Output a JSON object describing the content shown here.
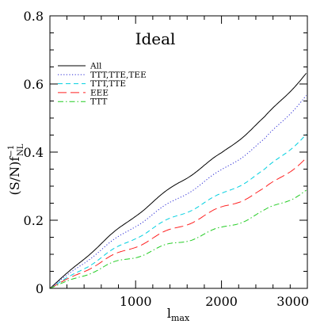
{
  "chart_data": {
    "type": "line",
    "annotation": "Ideal",
    "xlabel": "l",
    "xlabel_sub": "max",
    "ylabel": "(S/N)f",
    "ylabel_sup": "−1",
    "ylabel_sub": "NL",
    "xlim": [
      2,
      3000
    ],
    "ylim": [
      0,
      0.8
    ],
    "x_ticks": [
      1000,
      2000,
      3000
    ],
    "x_tick_labels": [
      "1000",
      "2000",
      "3000"
    ],
    "y_ticks": [
      0,
      0.2,
      0.4,
      0.6,
      0.8
    ],
    "y_tick_labels": [
      "0",
      "0.2",
      "0.4",
      "0.6",
      "0.8"
    ],
    "x_minor_step": 200,
    "y_minor_step": 0.05,
    "grid": false,
    "legend_position": "upper-left",
    "x": [
      2,
      500,
      1000,
      1500,
      2000,
      2500,
      3000
    ],
    "series": [
      {
        "name": "All",
        "color": "#000000",
        "dash": "solid",
        "values": [
          0,
          0.11,
          0.215,
          0.31,
          0.395,
          0.5,
          0.635
        ]
      },
      {
        "name": "TTT,TTE,TEE",
        "color": "#2b2bd6",
        "dash": "dotted",
        "values": [
          0,
          0.095,
          0.185,
          0.265,
          0.345,
          0.435,
          0.57
        ]
      },
      {
        "name": "TTT,TTE",
        "color": "#00d0e0",
        "dash": "dashed",
        "values": [
          0,
          0.075,
          0.15,
          0.215,
          0.275,
          0.345,
          0.455
        ]
      },
      {
        "name": "EEE",
        "color": "#ff2020",
        "dash": "longdash",
        "values": [
          0,
          0.065,
          0.125,
          0.18,
          0.235,
          0.29,
          0.385
        ]
      },
      {
        "name": "TTT",
        "color": "#22cc22",
        "dash": "dashdot",
        "values": [
          0,
          0.05,
          0.095,
          0.135,
          0.175,
          0.225,
          0.29
        ]
      }
    ]
  }
}
